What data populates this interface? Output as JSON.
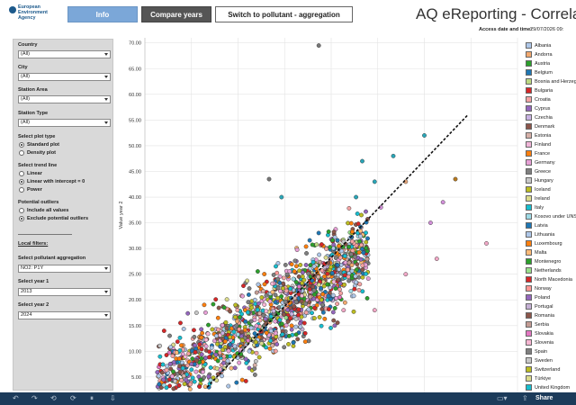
{
  "header": {
    "logo_text": "European\nEnvironment\nAgency",
    "tabs": {
      "info": "Info",
      "compare": "Compare years",
      "switch": "Switch to pollutant - aggregation"
    },
    "title": "AQ eReporting - Correla",
    "access_label": "Access date and time:",
    "access_value": "29/07/2026 09:"
  },
  "filters": {
    "country_label": "Country",
    "country_value": "(All)",
    "city_label": "City",
    "city_value": "(All)",
    "area_label": "Station Area",
    "area_value": "(All)",
    "type_label": "Station Type",
    "type_value": "(All)",
    "plot_type_label": "Select plot type",
    "plot_standard": "Standard plot",
    "plot_density": "Density plot",
    "trend_label": "Select trend line",
    "trend_linear": "Linear",
    "trend_linear0": "Linear with intercept = 0",
    "trend_power": "Power",
    "outliers_label": "Potential outliers",
    "outliers_include": "Include all values",
    "outliers_exclude": "Exclude potential outliers",
    "local_filters": "Local filters:",
    "pollutant_label": "Select pollutant aggregation",
    "pollutant_value": "NO2: P1Y",
    "year1_label": "Select year 1",
    "year1_value": "2013",
    "year2_label": "Select year 2",
    "year2_value": "2024"
  },
  "chart_data": {
    "type": "scatter",
    "ylabel": "Value year 2",
    "ylim": [
      2,
      71
    ],
    "yticks": [
      "5.00",
      "10.00",
      "15.00",
      "20.00",
      "25.00",
      "30.00",
      "35.00",
      "40.00",
      "45.00",
      "50.00",
      "55.00",
      "60.00",
      "65.00",
      "70.00"
    ],
    "grid": true,
    "trend": "linear-dashed",
    "series_note": "points colored by country",
    "points": [
      [
        38,
        69.5,
        "#777777"
      ],
      [
        55,
        52,
        "#2aa6b8"
      ],
      [
        50,
        48,
        "#2aa6b8"
      ],
      [
        45,
        47,
        "#2aa6b8"
      ],
      [
        52,
        43,
        "#e8a87c"
      ],
      [
        60,
        43.5,
        "#b7791f"
      ],
      [
        47,
        43,
        "#2aa6b8"
      ],
      [
        44,
        40,
        "#2aa6b8"
      ],
      [
        48,
        38,
        "#d18fd8"
      ],
      [
        56,
        35,
        "#d18fd8"
      ],
      [
        58,
        39,
        "#d18fd8"
      ],
      [
        65,
        31,
        "#f1a7c6"
      ],
      [
        57,
        28,
        "#f1a7c6"
      ],
      [
        52,
        25,
        "#f1a7c6"
      ],
      [
        47,
        18,
        "#f1a7c6"
      ],
      [
        42,
        18,
        "#f1a7c6"
      ],
      [
        30,
        43.5,
        "#777777"
      ],
      [
        32,
        40,
        "#2aa6b8"
      ]
    ],
    "trend_line": [
      [
        20,
        3
      ],
      [
        62,
        56
      ]
    ]
  },
  "legend": {
    "items": [
      {
        "name": "Albania",
        "color": "#aec7e8"
      },
      {
        "name": "Andorra",
        "color": "#f2a96f"
      },
      {
        "name": "Austria",
        "color": "#2ca02c"
      },
      {
        "name": "Belgium",
        "color": "#1f77b4"
      },
      {
        "name": "Bosnia and Herzegovina",
        "color": "#bcd982"
      },
      {
        "name": "Bulgaria",
        "color": "#d62728"
      },
      {
        "name": "Croatia",
        "color": "#f4a3a3"
      },
      {
        "name": "Cyprus",
        "color": "#9467bd"
      },
      {
        "name": "Czechia",
        "color": "#c9b3e3"
      },
      {
        "name": "Denmark",
        "color": "#8c564b"
      },
      {
        "name": "Estonia",
        "color": "#d6b0a8"
      },
      {
        "name": "Finland",
        "color": "#f0b5d8"
      },
      {
        "name": "France",
        "color": "#ff7f0e"
      },
      {
        "name": "Germany",
        "color": "#e7a0d6"
      },
      {
        "name": "Greece",
        "color": "#7f7f7f"
      },
      {
        "name": "Hungary",
        "color": "#c7c7c7"
      },
      {
        "name": "Iceland",
        "color": "#bcbd22"
      },
      {
        "name": "Ireland",
        "color": "#dbdb8d"
      },
      {
        "name": "Italy",
        "color": "#17becf"
      },
      {
        "name": "Kosovo under UNSCR 1244/99",
        "color": "#9edae5"
      },
      {
        "name": "Latvia",
        "color": "#1f77b4"
      },
      {
        "name": "Lithuania",
        "color": "#aec7e8"
      },
      {
        "name": "Luxembourg",
        "color": "#ff7f0e"
      },
      {
        "name": "Malta",
        "color": "#ffbb78"
      },
      {
        "name": "Montenegro",
        "color": "#2ca02c"
      },
      {
        "name": "Netherlands",
        "color": "#98df8a"
      },
      {
        "name": "North Macedonia",
        "color": "#d62728"
      },
      {
        "name": "Norway",
        "color": "#ff9896"
      },
      {
        "name": "Poland",
        "color": "#9467bd"
      },
      {
        "name": "Portugal",
        "color": "#c5b0d5"
      },
      {
        "name": "Romania",
        "color": "#8c564b"
      },
      {
        "name": "Serbia",
        "color": "#c49c94"
      },
      {
        "name": "Slovakia",
        "color": "#e377c2"
      },
      {
        "name": "Slovenia",
        "color": "#f7b6d2"
      },
      {
        "name": "Spain",
        "color": "#7f7f7f"
      },
      {
        "name": "Sweden",
        "color": "#c7c7c7"
      },
      {
        "name": "Switzerland",
        "color": "#bcbd22"
      },
      {
        "name": "Türkiye",
        "color": "#dbdb8d"
      },
      {
        "name": "United Kingdom",
        "color": "#17becf"
      }
    ]
  },
  "footer": {
    "share": "Share"
  }
}
